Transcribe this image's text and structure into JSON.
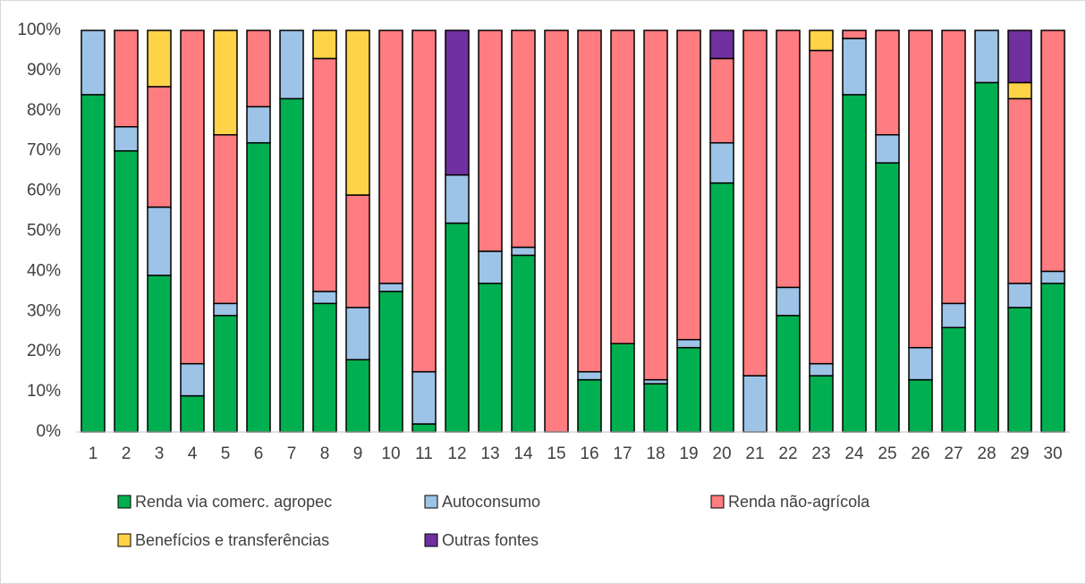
{
  "chart_data": {
    "type": "stacked_bar",
    "categories": [
      "1",
      "2",
      "3",
      "4",
      "5",
      "6",
      "7",
      "8",
      "9",
      "10",
      "11",
      "12",
      "13",
      "14",
      "15",
      "16",
      "17",
      "18",
      "19",
      "20",
      "21",
      "22",
      "23",
      "24",
      "25",
      "26",
      "27",
      "28",
      "29",
      "30"
    ],
    "series": [
      {
        "name": "Renda via comerc. agropec",
        "color": "#00b050",
        "values": [
          84,
          70,
          39,
          9,
          29,
          72,
          83,
          32,
          18,
          35,
          2,
          52,
          37,
          44,
          0,
          13,
          22,
          12,
          21,
          62,
          0,
          29,
          14,
          84,
          67,
          13,
          26,
          87,
          31,
          37
        ]
      },
      {
        "name": "Autoconsumo",
        "color": "#9dc3e6",
        "values": [
          16,
          6,
          17,
          8,
          3,
          9,
          17,
          3,
          13,
          2,
          13,
          12,
          8,
          2,
          0,
          2,
          0,
          1,
          2,
          10,
          14,
          7,
          3,
          14,
          7,
          8,
          6,
          13,
          6,
          3
        ]
      },
      {
        "name": "Renda não-agrícola",
        "color": "#ff7c80",
        "values": [
          0,
          24,
          30,
          83,
          42,
          19,
          0,
          58,
          28,
          63,
          85,
          0,
          55,
          54,
          100,
          85,
          78,
          87,
          77,
          21,
          86,
          64,
          78,
          2,
          26,
          79,
          68,
          0,
          46,
          60
        ]
      },
      {
        "name": "Benefícios e transferências",
        "color": "#ffd347",
        "values": [
          0,
          0,
          14,
          0,
          26,
          0,
          0,
          7,
          41,
          0,
          0,
          0,
          0,
          0,
          0,
          0,
          0,
          0,
          0,
          0,
          0,
          0,
          5,
          0,
          0,
          0,
          0,
          0,
          4,
          0
        ]
      },
      {
        "name": "Outras fontes",
        "color": "#7030a0",
        "values": [
          0,
          0,
          0,
          0,
          0,
          0,
          0,
          0,
          0,
          0,
          0,
          36,
          0,
          0,
          0,
          0,
          0,
          0,
          0,
          7,
          0,
          0,
          0,
          0,
          0,
          0,
          0,
          0,
          13,
          0
        ]
      }
    ],
    "ylim": [
      0,
      100
    ],
    "yticks": [
      {
        "value": 0,
        "label": "0%"
      },
      {
        "value": 10,
        "label": "10%"
      },
      {
        "value": 20,
        "label": "20%"
      },
      {
        "value": 30,
        "label": "30%"
      },
      {
        "value": 40,
        "label": "40%"
      },
      {
        "value": 50,
        "label": "50%"
      },
      {
        "value": 60,
        "label": "60%"
      },
      {
        "value": 70,
        "label": "70%"
      },
      {
        "value": 80,
        "label": "80%"
      },
      {
        "value": 90,
        "label": "90%"
      },
      {
        "value": 100,
        "label": "100%"
      }
    ],
    "grid": false
  }
}
